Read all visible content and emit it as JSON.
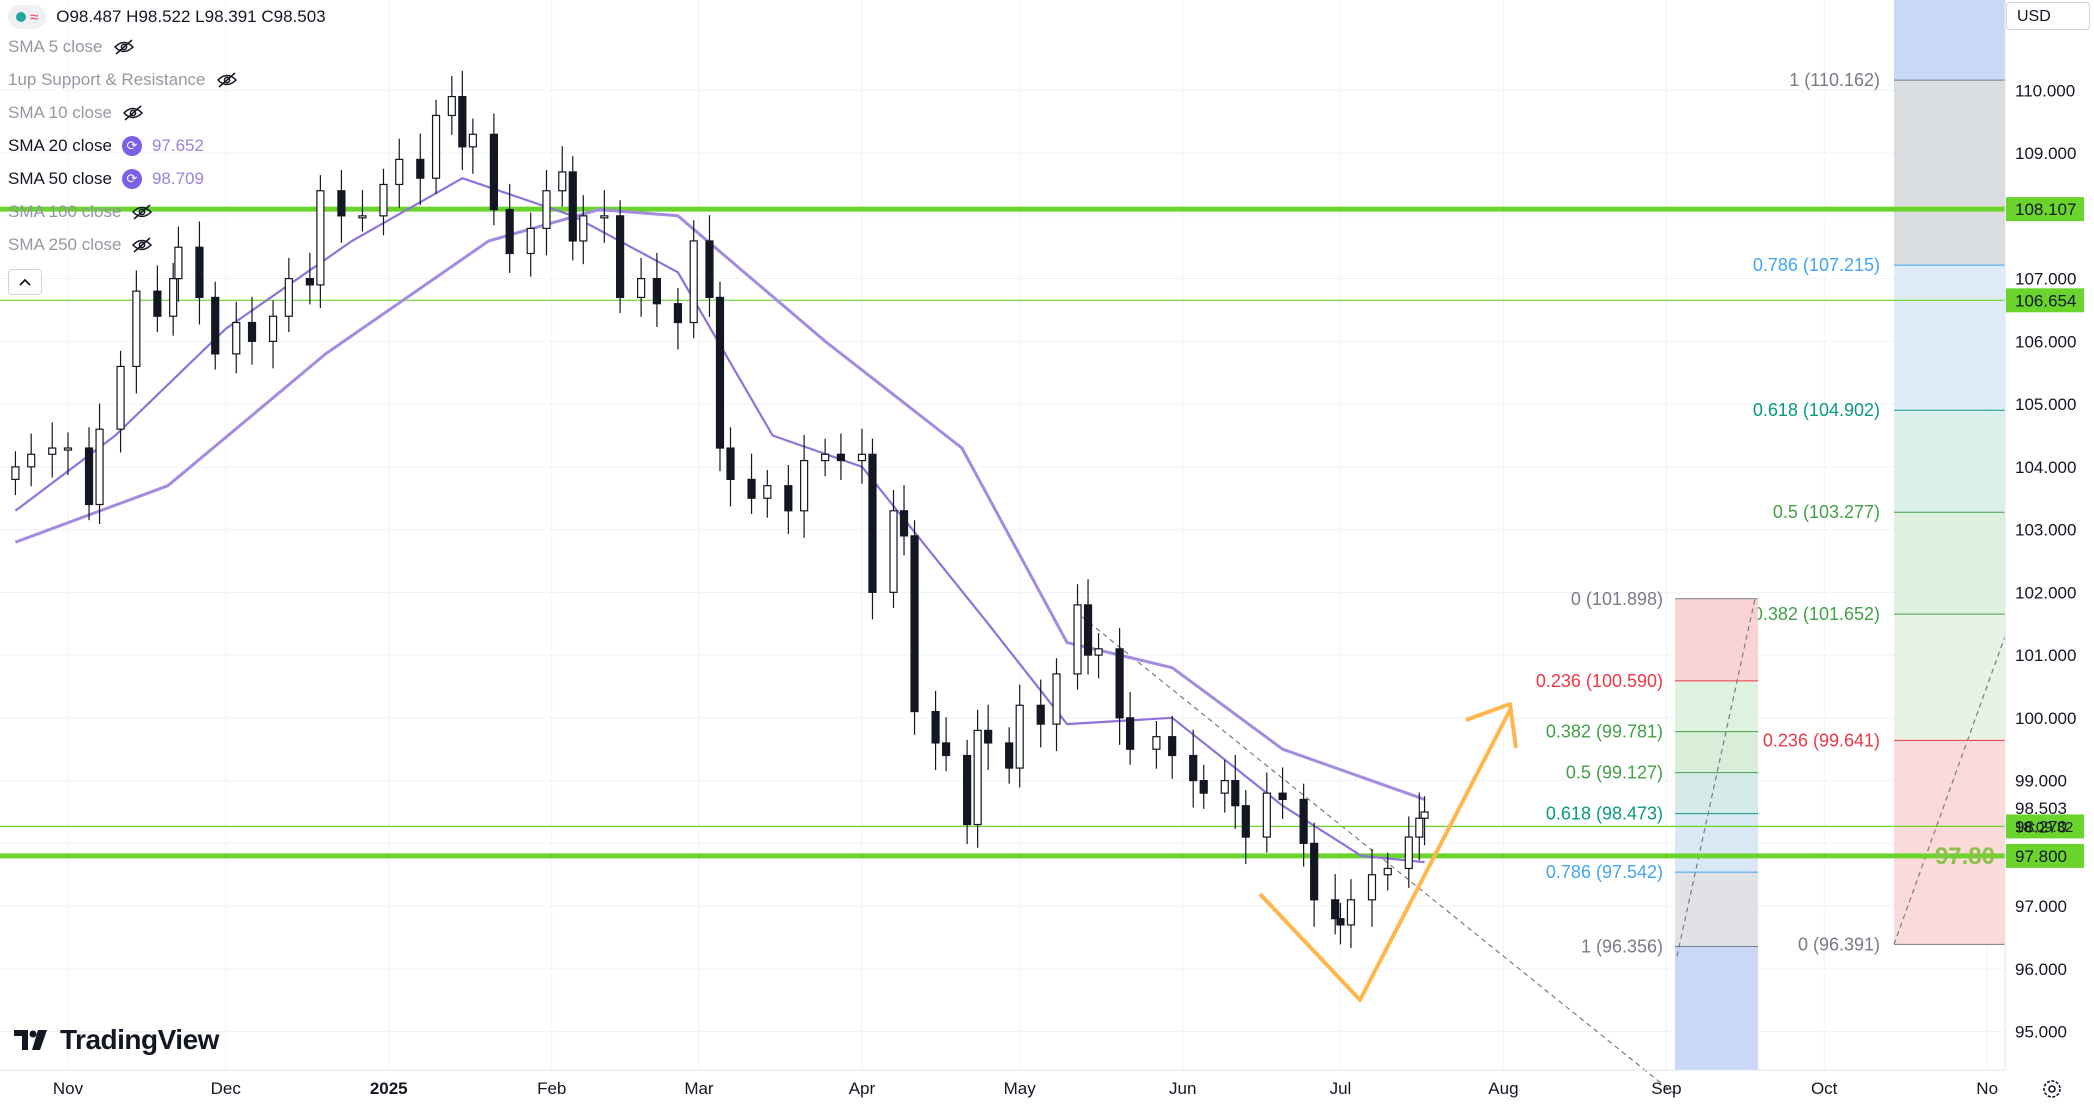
{
  "header": {
    "ohlc": "O98.487 H98.522 L98.391 C98.503",
    "currency": "USD"
  },
  "indicators": [
    {
      "label": "SMA 5 close",
      "value": "",
      "hidden": true,
      "icon": "eye-off-icon"
    },
    {
      "label": "1up Support & Resistance",
      "value": "",
      "hidden": true,
      "icon": "eye-off-icon"
    },
    {
      "label": "SMA 10 close",
      "value": "",
      "hidden": true,
      "icon": "eye-off-icon"
    },
    {
      "label": "SMA 20 close",
      "value": "97.652",
      "hidden": false,
      "icon": "cycle-icon"
    },
    {
      "label": "SMA 50 close",
      "value": "98.709",
      "hidden": false,
      "icon": "cycle-icon"
    },
    {
      "label": "SMA 100 close",
      "value": "",
      "hidden": true,
      "icon": "eye-off-icon"
    },
    {
      "label": "SMA 250 close",
      "value": "",
      "hidden": true,
      "icon": "eye-off-icon"
    }
  ],
  "brand": {
    "name": "TradingView"
  },
  "colors": {
    "up": "#131722",
    "down": "#131722",
    "sma20": "#9a7fe0",
    "sma50": "#8a6fd6",
    "support": "#6ad42c",
    "fib_red": "#f23645",
    "fib_green": "#43a047",
    "fib_teal": "#089981",
    "fib_blue": "#42a5f5",
    "arrow": "#ffb74d"
  },
  "chart_data": {
    "type": "candlestick",
    "y_range": [
      94.5,
      111.5
    ],
    "y_ticks": [
      "95.000",
      "96.000",
      "97.000",
      "98.000",
      "99.000",
      "100.000",
      "101.000",
      "102.000",
      "103.000",
      "104.000",
      "105.000",
      "106.000",
      "107.000",
      "108.000",
      "109.000",
      "110.000"
    ],
    "x_labels": [
      {
        "label": "Nov",
        "x": "2024-11-01"
      },
      {
        "label": "Dec",
        "x": "2024-12-01"
      },
      {
        "label": "2025",
        "x": "2025-01-01"
      },
      {
        "label": "Feb",
        "x": "2025-02-01"
      },
      {
        "label": "Mar",
        "x": "2025-03-01"
      },
      {
        "label": "Apr",
        "x": "2025-04-01"
      },
      {
        "label": "May",
        "x": "2025-05-01"
      },
      {
        "label": "Jun",
        "x": "2025-06-01"
      },
      {
        "label": "Jul",
        "x": "2025-07-01"
      },
      {
        "label": "Aug",
        "x": "2025-08-01"
      },
      {
        "label": "Sep",
        "x": "2025-09-01"
      },
      {
        "label": "Oct",
        "x": "2025-10-01"
      },
      {
        "label": "No",
        "x": "2025-11-01"
      }
    ],
    "closes": [
      {
        "x": "2024-10-22",
        "c": 104.0
      },
      {
        "x": "2024-10-25",
        "c": 104.2
      },
      {
        "x": "2024-10-29",
        "c": 104.3
      },
      {
        "x": "2024-11-01",
        "c": 104.3
      },
      {
        "x": "2024-11-05",
        "c": 103.4
      },
      {
        "x": "2024-11-07",
        "c": 104.6
      },
      {
        "x": "2024-11-11",
        "c": 105.6
      },
      {
        "x": "2024-11-14",
        "c": 106.8
      },
      {
        "x": "2024-11-18",
        "c": 106.4
      },
      {
        "x": "2024-11-21",
        "c": 107.0
      },
      {
        "x": "2024-11-22",
        "c": 107.5
      },
      {
        "x": "2024-11-26",
        "c": 106.7
      },
      {
        "x": "2024-11-29",
        "c": 105.8
      },
      {
        "x": "2024-12-03",
        "c": 106.3
      },
      {
        "x": "2024-12-06",
        "c": 106.0
      },
      {
        "x": "2024-12-10",
        "c": 106.4
      },
      {
        "x": "2024-12-13",
        "c": 107.0
      },
      {
        "x": "2024-12-17",
        "c": 106.9
      },
      {
        "x": "2024-12-19",
        "c": 108.4
      },
      {
        "x": "2024-12-23",
        "c": 108.0
      },
      {
        "x": "2024-12-27",
        "c": 108.0
      },
      {
        "x": "2024-12-31",
        "c": 108.5
      },
      {
        "x": "2025-01-03",
        "c": 108.9
      },
      {
        "x": "2025-01-07",
        "c": 108.6
      },
      {
        "x": "2025-01-10",
        "c": 109.6
      },
      {
        "x": "2025-01-13",
        "c": 109.9
      },
      {
        "x": "2025-01-15",
        "c": 109.1
      },
      {
        "x": "2025-01-17",
        "c": 109.3
      },
      {
        "x": "2025-01-21",
        "c": 108.1
      },
      {
        "x": "2025-01-24",
        "c": 107.4
      },
      {
        "x": "2025-01-28",
        "c": 107.8
      },
      {
        "x": "2025-01-31",
        "c": 108.4
      },
      {
        "x": "2025-02-03",
        "c": 108.7
      },
      {
        "x": "2025-02-05",
        "c": 107.6
      },
      {
        "x": "2025-02-07",
        "c": 108.0
      },
      {
        "x": "2025-02-11",
        "c": 108.0
      },
      {
        "x": "2025-02-14",
        "c": 106.7
      },
      {
        "x": "2025-02-18",
        "c": 107.0
      },
      {
        "x": "2025-02-21",
        "c": 106.6
      },
      {
        "x": "2025-02-25",
        "c": 106.3
      },
      {
        "x": "2025-02-28",
        "c": 107.6
      },
      {
        "x": "2025-03-03",
        "c": 106.7
      },
      {
        "x": "2025-03-05",
        "c": 104.3
      },
      {
        "x": "2025-03-07",
        "c": 103.8
      },
      {
        "x": "2025-03-11",
        "c": 103.5
      },
      {
        "x": "2025-03-14",
        "c": 103.7
      },
      {
        "x": "2025-03-18",
        "c": 103.3
      },
      {
        "x": "2025-03-21",
        "c": 104.1
      },
      {
        "x": "2025-03-25",
        "c": 104.2
      },
      {
        "x": "2025-03-28",
        "c": 104.1
      },
      {
        "x": "2025-04-01",
        "c": 104.2
      },
      {
        "x": "2025-04-03",
        "c": 102.0
      },
      {
        "x": "2025-04-07",
        "c": 103.3
      },
      {
        "x": "2025-04-09",
        "c": 102.9
      },
      {
        "x": "2025-04-11",
        "c": 100.1
      },
      {
        "x": "2025-04-15",
        "c": 99.6
      },
      {
        "x": "2025-04-17",
        "c": 99.4
      },
      {
        "x": "2025-04-21",
        "c": 98.3
      },
      {
        "x": "2025-04-23",
        "c": 99.8
      },
      {
        "x": "2025-04-25",
        "c": 99.6
      },
      {
        "x": "2025-04-29",
        "c": 99.2
      },
      {
        "x": "2025-05-01",
        "c": 100.2
      },
      {
        "x": "2025-05-05",
        "c": 99.9
      },
      {
        "x": "2025-05-08",
        "c": 100.7
      },
      {
        "x": "2025-05-12",
        "c": 101.8
      },
      {
        "x": "2025-05-14",
        "c": 101.0
      },
      {
        "x": "2025-05-16",
        "c": 101.1
      },
      {
        "x": "2025-05-20",
        "c": 100.0
      },
      {
        "x": "2025-05-22",
        "c": 99.5
      },
      {
        "x": "2025-05-27",
        "c": 99.7
      },
      {
        "x": "2025-05-30",
        "c": 99.4
      },
      {
        "x": "2025-06-03",
        "c": 99.0
      },
      {
        "x": "2025-06-05",
        "c": 98.8
      },
      {
        "x": "2025-06-09",
        "c": 99.0
      },
      {
        "x": "2025-06-11",
        "c": 98.6
      },
      {
        "x": "2025-06-13",
        "c": 98.1
      },
      {
        "x": "2025-06-17",
        "c": 98.8
      },
      {
        "x": "2025-06-20",
        "c": 98.7
      },
      {
        "x": "2025-06-24",
        "c": 98.0
      },
      {
        "x": "2025-06-26",
        "c": 97.1
      },
      {
        "x": "2025-06-30",
        "c": 96.8
      },
      {
        "x": "2025-07-01",
        "c": 96.7
      },
      {
        "x": "2025-07-03",
        "c": 97.1
      },
      {
        "x": "2025-07-07",
        "c": 97.5
      },
      {
        "x": "2025-07-10",
        "c": 97.6
      },
      {
        "x": "2025-07-14",
        "c": 98.1
      },
      {
        "x": "2025-07-16",
        "c": 98.4
      },
      {
        "x": "2025-07-17",
        "c": 98.5
      }
    ],
    "sma50": [
      {
        "x": "2024-10-22",
        "v": 102.8
      },
      {
        "x": "2024-11-20",
        "v": 103.7
      },
      {
        "x": "2024-12-20",
        "v": 105.8
      },
      {
        "x": "2025-01-20",
        "v": 107.6
      },
      {
        "x": "2025-02-10",
        "v": 108.1
      },
      {
        "x": "2025-02-25",
        "v": 108.0
      },
      {
        "x": "2025-03-25",
        "v": 106.0
      },
      {
        "x": "2025-04-20",
        "v": 104.3
      },
      {
        "x": "2025-05-10",
        "v": 101.2
      },
      {
        "x": "2025-05-30",
        "v": 100.8
      },
      {
        "x": "2025-06-20",
        "v": 99.5
      },
      {
        "x": "2025-07-17",
        "v": 98.7
      }
    ],
    "sma20": [
      {
        "x": "2024-10-22",
        "v": 103.3
      },
      {
        "x": "2024-11-10",
        "v": 104.5
      },
      {
        "x": "2024-12-01",
        "v": 106.2
      },
      {
        "x": "2024-12-25",
        "v": 107.6
      },
      {
        "x": "2025-01-15",
        "v": 108.6
      },
      {
        "x": "2025-02-05",
        "v": 108.0
      },
      {
        "x": "2025-02-25",
        "v": 107.1
      },
      {
        "x": "2025-03-15",
        "v": 104.5
      },
      {
        "x": "2025-04-01",
        "v": 104.0
      },
      {
        "x": "2025-04-25",
        "v": 101.5
      },
      {
        "x": "2025-05-10",
        "v": 99.9
      },
      {
        "x": "2025-05-30",
        "v": 100.0
      },
      {
        "x": "2025-06-20",
        "v": 98.6
      },
      {
        "x": "2025-07-05",
        "v": 97.8
      },
      {
        "x": "2025-07-17",
        "v": 97.7
      }
    ],
    "support_lines": [
      {
        "value": 108.107,
        "label": "108.107",
        "weight": "thick"
      },
      {
        "value": 106.654,
        "label": "106.654",
        "weight": "thin"
      },
      {
        "value": 97.8,
        "label": "97.800",
        "weight": "thick",
        "text": "97.80"
      },
      {
        "value": 98.27,
        "label": "98.270",
        "weight": "thin"
      }
    ],
    "last_price": {
      "value": 98.503,
      "label": "98.503",
      "countdown": "18:09:32"
    },
    "fib_left": [
      {
        "level": "0 (101.898)",
        "value": 101.898,
        "color": "#787b86"
      },
      {
        "level": "0.236 (100.590)",
        "value": 100.59,
        "color": "#f23645"
      },
      {
        "level": "0.382 (99.781)",
        "value": 99.781,
        "color": "#43a047"
      },
      {
        "level": "0.5 (99.127)",
        "value": 99.127,
        "color": "#43a047"
      },
      {
        "level": "0.618 (98.473)",
        "value": 98.473,
        "color": "#089981"
      },
      {
        "level": "0.786 (97.542)",
        "value": 97.542,
        "color": "#42a5f5"
      },
      {
        "level": "1 (96.356)",
        "value": 96.356,
        "color": "#787b86"
      }
    ],
    "fib_right": [
      {
        "level": "1 (110.162)",
        "value": 110.162,
        "color": "#787b86"
      },
      {
        "level": "0.786 (107.215)",
        "value": 107.215,
        "color": "#42a5f5"
      },
      {
        "level": "0.618 (104.902)",
        "value": 104.902,
        "color": "#089981"
      },
      {
        "level": "0.5 (103.277)",
        "value": 103.277,
        "color": "#43a047"
      },
      {
        "level": "0.382 (101.652)",
        "value": 101.652,
        "color": "#43a047"
      },
      {
        "level": "0.236 (99.641)",
        "value": 99.641,
        "color": "#f23645"
      },
      {
        "level": "0 (96.391)",
        "value": 96.391,
        "color": "#787b86"
      }
    ]
  }
}
